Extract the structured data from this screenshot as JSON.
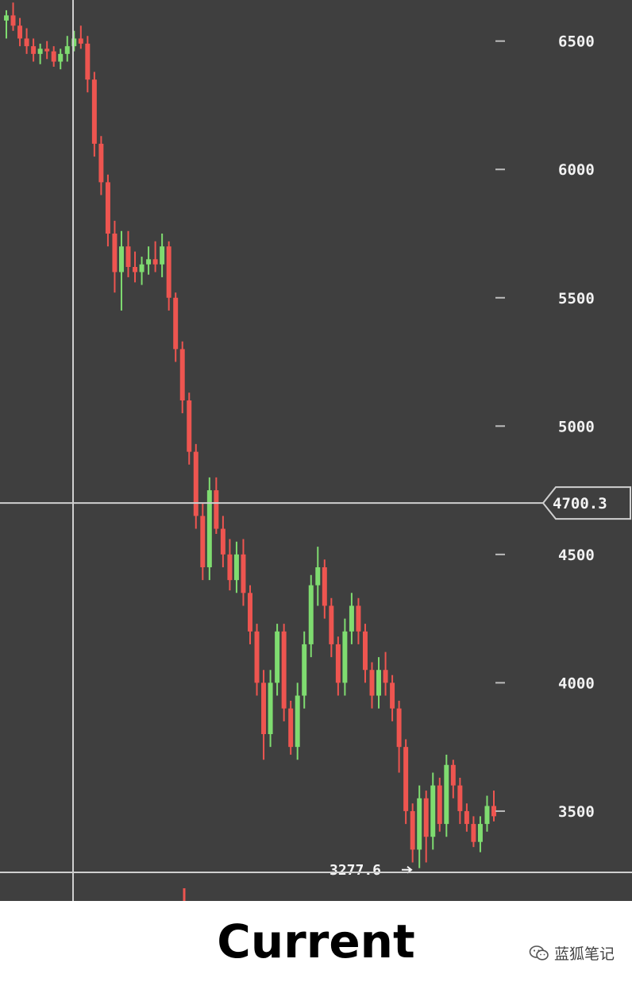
{
  "chart_data": {
    "type": "candlestick",
    "title": "",
    "xlabel": "",
    "ylabel": "",
    "ylim": [
      3150,
      6660
    ],
    "y_ticks": [
      "6500",
      "6000",
      "5500",
      "5000",
      "4500",
      "4000",
      "3500"
    ],
    "grid": false,
    "crosshair_price": "4700.3",
    "low_label": "3277.6",
    "colors": {
      "background": "#3f3f3f",
      "up": "#7fdc70",
      "down": "#ee5550",
      "crosshair": "#cfcfcf"
    },
    "candles": [
      [
        6580,
        6620,
        6510,
        6600
      ],
      [
        6600,
        6650,
        6540,
        6560
      ],
      [
        6560,
        6590,
        6480,
        6510
      ],
      [
        6510,
        6550,
        6450,
        6480
      ],
      [
        6480,
        6510,
        6420,
        6450
      ],
      [
        6450,
        6490,
        6410,
        6470
      ],
      [
        6470,
        6500,
        6430,
        6460
      ],
      [
        6460,
        6480,
        6400,
        6420
      ],
      [
        6420,
        6470,
        6390,
        6450
      ],
      [
        6450,
        6520,
        6420,
        6480
      ],
      [
        6480,
        6540,
        6460,
        6510
      ],
      [
        6510,
        6560,
        6470,
        6490
      ],
      [
        6490,
        6520,
        6300,
        6350
      ],
      [
        6350,
        6380,
        6050,
        6100
      ],
      [
        6100,
        6130,
        5900,
        5950
      ],
      [
        5950,
        5980,
        5700,
        5750
      ],
      [
        5750,
        5800,
        5520,
        5600
      ],
      [
        5600,
        5760,
        5450,
        5700
      ],
      [
        5700,
        5760,
        5580,
        5620
      ],
      [
        5620,
        5680,
        5560,
        5600
      ],
      [
        5600,
        5660,
        5550,
        5630
      ],
      [
        5630,
        5700,
        5590,
        5650
      ],
      [
        5650,
        5720,
        5600,
        5630
      ],
      [
        5630,
        5750,
        5580,
        5700
      ],
      [
        5700,
        5720,
        5450,
        5500
      ],
      [
        5500,
        5520,
        5250,
        5300
      ],
      [
        5300,
        5330,
        5050,
        5100
      ],
      [
        5100,
        5130,
        4850,
        4900
      ],
      [
        4900,
        4930,
        4600,
        4650
      ],
      [
        4650,
        4700,
        4400,
        4450
      ],
      [
        4450,
        4800,
        4400,
        4750
      ],
      [
        4750,
        4800,
        4580,
        4600
      ],
      [
        4600,
        4650,
        4450,
        4500
      ],
      [
        4500,
        4560,
        4360,
        4400
      ],
      [
        4400,
        4550,
        4350,
        4500
      ],
      [
        4500,
        4560,
        4300,
        4350
      ],
      [
        4350,
        4380,
        4150,
        4200
      ],
      [
        4200,
        4230,
        3950,
        4000
      ],
      [
        4000,
        4050,
        3700,
        3800
      ],
      [
        3800,
        4050,
        3750,
        4000
      ],
      [
        4000,
        4230,
        3950,
        4200
      ],
      [
        4200,
        4230,
        3850,
        3900
      ],
      [
        3900,
        3930,
        3720,
        3750
      ],
      [
        3750,
        4000,
        3700,
        3950
      ],
      [
        3950,
        4200,
        3900,
        4150
      ],
      [
        4150,
        4420,
        4100,
        4380
      ],
      [
        4380,
        4530,
        4300,
        4450
      ],
      [
        4450,
        4480,
        4250,
        4300
      ],
      [
        4300,
        4330,
        4100,
        4150
      ],
      [
        4150,
        4180,
        3950,
        4000
      ],
      [
        4000,
        4250,
        3950,
        4200
      ],
      [
        4200,
        4350,
        4150,
        4300
      ],
      [
        4300,
        4330,
        4150,
        4200
      ],
      [
        4200,
        4230,
        4000,
        4050
      ],
      [
        4050,
        4080,
        3900,
        3950
      ],
      [
        3950,
        4100,
        3900,
        4050
      ],
      [
        4050,
        4120,
        3950,
        4000
      ],
      [
        4000,
        4030,
        3850,
        3900
      ],
      [
        3900,
        3930,
        3650,
        3750
      ],
      [
        3750,
        3780,
        3450,
        3500
      ],
      [
        3500,
        3530,
        3300,
        3350
      ],
      [
        3350,
        3600,
        3278,
        3550
      ],
      [
        3550,
        3580,
        3300,
        3400
      ],
      [
        3400,
        3650,
        3350,
        3600
      ],
      [
        3600,
        3630,
        3420,
        3450
      ],
      [
        3450,
        3720,
        3400,
        3680
      ],
      [
        3680,
        3700,
        3550,
        3600
      ],
      [
        3600,
        3630,
        3450,
        3500
      ],
      [
        3500,
        3530,
        3420,
        3450
      ],
      [
        3450,
        3480,
        3360,
        3380
      ],
      [
        3380,
        3480,
        3340,
        3450
      ],
      [
        3450,
        3560,
        3420,
        3520
      ],
      [
        3520,
        3580,
        3460,
        3480
      ]
    ]
  },
  "caption": "Current",
  "watermark": {
    "text": "蓝狐笔记",
    "icon": "wechat-icon"
  }
}
